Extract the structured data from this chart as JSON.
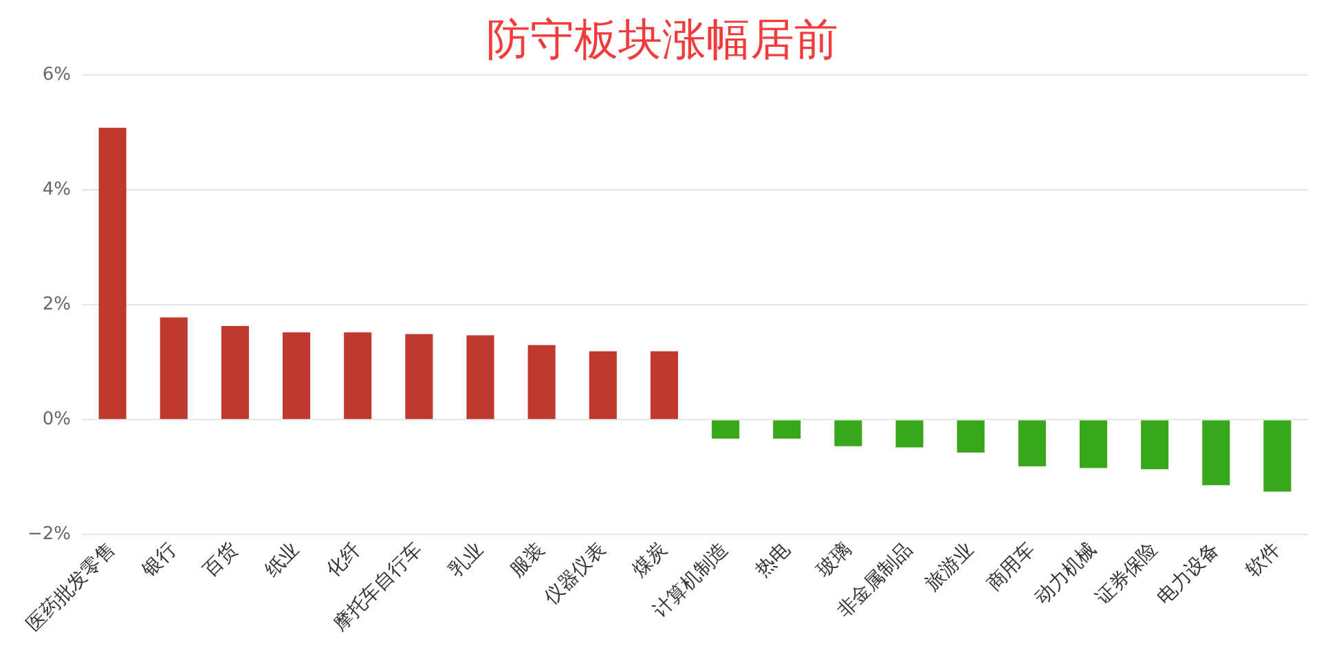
{
  "chart_data": {
    "type": "bar",
    "title": "防守板块涨幅居前",
    "categories": [
      "医药批发零售",
      "银行",
      "百货",
      "纸业",
      "化纤",
      "摩托车自行车",
      "乳业",
      "服装",
      "仪器仪表",
      "煤炭",
      "计算机制造",
      "热电",
      "玻璃",
      "非金属制品",
      "旅游业",
      "商用车",
      "动力机械",
      "证券保险",
      "电力设备",
      "软件"
    ],
    "values": [
      5.08,
      1.78,
      1.63,
      1.52,
      1.52,
      1.49,
      1.47,
      1.3,
      1.19,
      1.19,
      -0.33,
      -0.33,
      -0.46,
      -0.48,
      -0.57,
      -0.81,
      -0.84,
      -0.86,
      -1.14,
      -1.25
    ],
    "colors": [
      "#c0392f",
      "#c0392f",
      "#c0392f",
      "#c0392f",
      "#c0392f",
      "#c0392f",
      "#c0392f",
      "#c0392f",
      "#c0392f",
      "#c0392f",
      "#36a81a",
      "#36a81a",
      "#36a81a",
      "#36a81a",
      "#36a81a",
      "#36a81a",
      "#36a81a",
      "#36a81a",
      "#36a81a",
      "#36a81a"
    ],
    "ylim": [
      -2,
      6
    ],
    "yticks": [
      {
        "value": -2,
        "label": "−2%"
      },
      {
        "value": 0,
        "label": "0%"
      },
      {
        "value": 2,
        "label": "2%"
      },
      {
        "value": 4,
        "label": "4%"
      },
      {
        "value": 6,
        "label": "6%"
      }
    ],
    "grid": "y",
    "legend": false
  }
}
